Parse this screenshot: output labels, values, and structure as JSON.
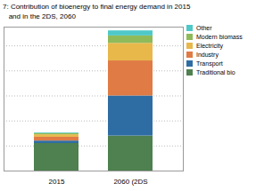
{
  "chart_data": {
    "type": "bar",
    "stacked": true,
    "title": "7: Contribution of bioenergy to final energy demand in 2015",
    "subtitle": "   and in the 2DS, 2060",
    "categories": [
      "2015",
      "2060 (2DS"
    ],
    "series": [
      {
        "name": "Traditional bio",
        "color": "#4e8050",
        "values": [
          22,
          28
        ]
      },
      {
        "name": "Transport",
        "color": "#2e6da4",
        "values": [
          2,
          32
        ]
      },
      {
        "name": "Industry",
        "color": "#e07b45",
        "values": [
          3,
          28
        ]
      },
      {
        "name": "Electricity",
        "color": "#e8b84b",
        "values": [
          2,
          14
        ]
      },
      {
        "name": "Modern biomass",
        "color": "#8fba5a",
        "values": [
          1,
          6
        ]
      },
      {
        "name": "Other",
        "color": "#4ec8c8",
        "values": [
          0.5,
          4
        ]
      }
    ],
    "ylim": [
      0,
      115
    ],
    "yticks": [
      20,
      40,
      60,
      80,
      100
    ],
    "grid": true,
    "legend": "upper right",
    "tick_labels": "x"
  }
}
